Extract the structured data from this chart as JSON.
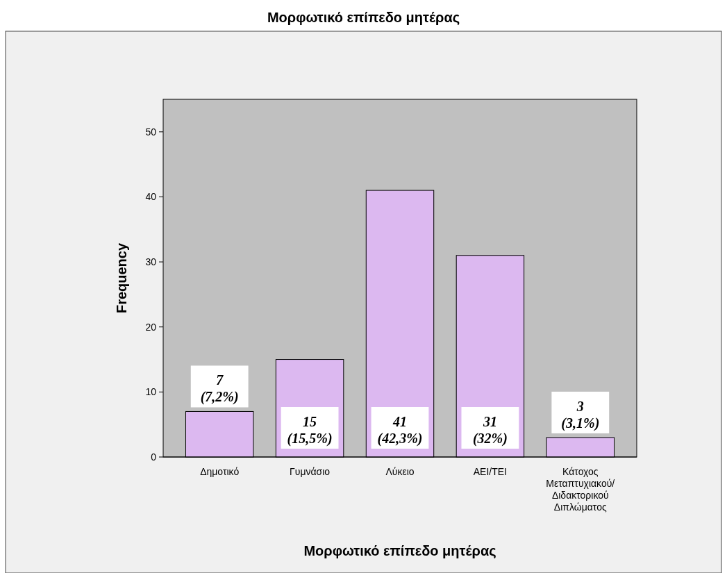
{
  "chart_data": {
    "type": "bar",
    "title": "Μορφωτικό επίπεδο μητέρας",
    "xlabel": "Μορφωτικό επίπεδο μητέρας",
    "ylabel": "Frequency",
    "categories": [
      "Δημοτικό",
      "Γυμνάσιο",
      "Λύκειο",
      "ΑΕΙ/ΤΕΙ",
      "Κάτοχος Μεταπτυχιακού/Διδακτορικού Διπλώματος"
    ],
    "values": [
      7,
      15,
      41,
      31,
      3
    ],
    "value_labels": [
      "7\n(7,2%)",
      "15\n(15,5%)",
      "41\n(42,3%)",
      "31\n(32%)",
      "3\n(3,1%)"
    ],
    "color": "#dcb8f0",
    "ylim": [
      0,
      55
    ],
    "yticks": [
      0,
      10,
      20,
      30,
      40,
      50
    ],
    "grid": false
  }
}
